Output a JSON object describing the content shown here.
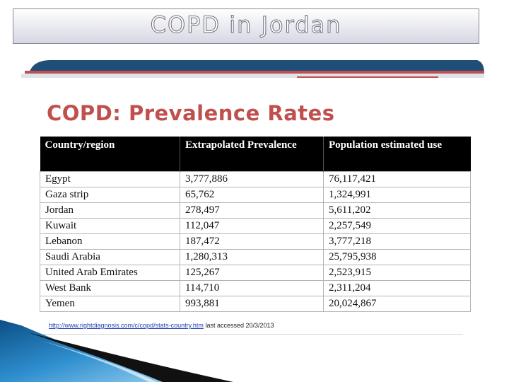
{
  "slide": {
    "title": "COPD in Jordan",
    "subtitle": "COPD: Prevalence Rates"
  },
  "table": {
    "headers": [
      "Country/region",
      "Extrapolated Prevalence",
      "Population estimated use"
    ],
    "rows": [
      [
        "Egypt",
        "3,777,886",
        "76,117,421"
      ],
      [
        "Gaza strip",
        "65,762",
        "1,324,991"
      ],
      [
        "Jordan",
        "278,497",
        "5,611,202"
      ],
      [
        "Kuwait",
        "112,047",
        "2,257,549"
      ],
      [
        "Lebanon",
        "187,472",
        "3,777,218"
      ],
      [
        "Saudi Arabia",
        "1,280,313",
        "25,795,938"
      ],
      [
        "United Arab Emirates",
        "125,267",
        "2,523,915"
      ],
      [
        "West Bank",
        "114,710",
        "2,311,204"
      ],
      [
        "Yemen",
        "993,881",
        "20,024,867"
      ]
    ]
  },
  "source": {
    "link": "http://www.rightdiagnosis.com/c/copd/stats-country.htm",
    "note": "last accessed 20/3/2013"
  },
  "colors": {
    "accent_red": "#c0504d",
    "band_blue": "#1f4e79",
    "corner_blue": "#2f8fcf"
  }
}
